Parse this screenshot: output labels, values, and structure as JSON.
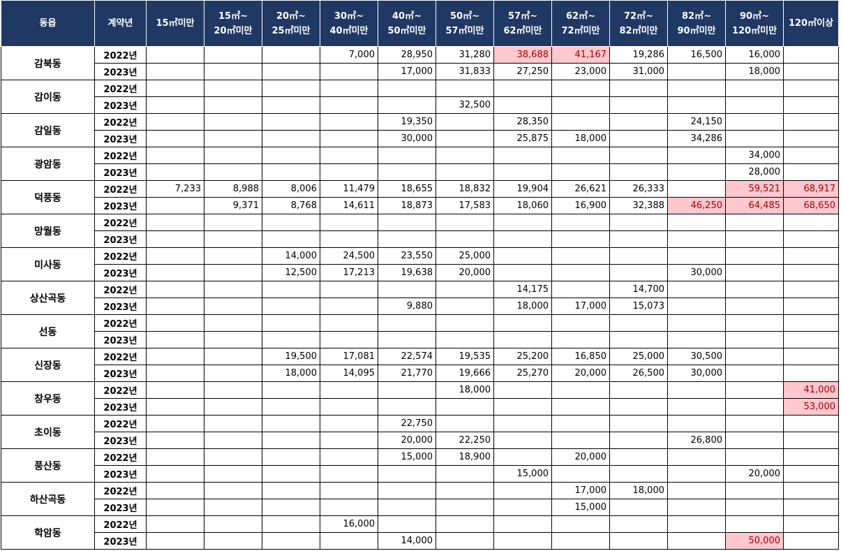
{
  "header": {
    "dong": "동읍",
    "year": "계약년",
    "bins": [
      [
        "15㎡미만",
        ""
      ],
      [
        "15㎡~",
        "20㎡미만"
      ],
      [
        "20㎡~",
        "25㎡미만"
      ],
      [
        "30㎡~",
        "40㎡미만"
      ],
      [
        "40㎡~",
        "50㎡미만"
      ],
      [
        "50㎡~",
        "57㎡미만"
      ],
      [
        "57㎡~",
        "62㎡미만"
      ],
      [
        "62㎡~",
        "72㎡미만"
      ],
      [
        "72㎡~",
        "82㎡미만"
      ],
      [
        "82㎡~",
        "90㎡미만"
      ],
      [
        "90㎡~",
        "120㎡미만"
      ],
      [
        "120㎡이상",
        ""
      ]
    ]
  },
  "highlight_color": "#ffc7ce",
  "highlight_text_color": "#9c0006",
  "groups": [
    {
      "dong": "감북동",
      "rows": [
        {
          "year": "2022년",
          "values": [
            "",
            "",
            "",
            "7,000",
            "28,950",
            "31,280",
            "38,688",
            "41,167",
            "19,286",
            "16,500",
            "16,000",
            ""
          ],
          "highlight": [
            6,
            7
          ]
        },
        {
          "year": "2023년",
          "values": [
            "",
            "",
            "",
            "",
            "17,000",
            "31,833",
            "27,250",
            "23,000",
            "31,000",
            "",
            "18,000",
            ""
          ],
          "highlight": []
        }
      ]
    },
    {
      "dong": "감이동",
      "rows": [
        {
          "year": "2022년",
          "values": [
            "",
            "",
            "",
            "",
            "",
            "",
            "",
            "",
            "",
            "",
            "",
            ""
          ],
          "highlight": []
        },
        {
          "year": "2023년",
          "values": [
            "",
            "",
            "",
            "",
            "",
            "32,500",
            "",
            "",
            "",
            "",
            "",
            ""
          ],
          "highlight": []
        }
      ]
    },
    {
      "dong": "감일동",
      "rows": [
        {
          "year": "2022년",
          "values": [
            "",
            "",
            "",
            "",
            "19,350",
            "",
            "28,350",
            "",
            "",
            "24,150",
            "",
            ""
          ],
          "highlight": []
        },
        {
          "year": "2023년",
          "values": [
            "",
            "",
            "",
            "",
            "30,000",
            "",
            "25,875",
            "18,000",
            "",
            "34,286",
            "",
            ""
          ],
          "highlight": []
        }
      ]
    },
    {
      "dong": "광암동",
      "rows": [
        {
          "year": "2022년",
          "values": [
            "",
            "",
            "",
            "",
            "",
            "",
            "",
            "",
            "",
            "",
            "34,000",
            ""
          ],
          "highlight": []
        },
        {
          "year": "2023년",
          "values": [
            "",
            "",
            "",
            "",
            "",
            "",
            "",
            "",
            "",
            "",
            "28,000",
            ""
          ],
          "highlight": []
        }
      ]
    },
    {
      "dong": "덕풍동",
      "rows": [
        {
          "year": "2022년",
          "values": [
            "7,233",
            "8,988",
            "8,006",
            "11,479",
            "18,655",
            "18,832",
            "19,904",
            "26,621",
            "26,333",
            "",
            "59,521",
            "68,917"
          ],
          "highlight": [
            10,
            11
          ]
        },
        {
          "year": "2023년",
          "values": [
            "",
            "9,371",
            "8,768",
            "14,611",
            "18,873",
            "17,583",
            "18,060",
            "16,900",
            "32,388",
            "46,250",
            "64,485",
            "68,650"
          ],
          "highlight": [
            9,
            10,
            11
          ]
        }
      ]
    },
    {
      "dong": "망월동",
      "rows": [
        {
          "year": "2022년",
          "values": [
            "",
            "",
            "",
            "",
            "",
            "",
            "",
            "",
            "",
            "",
            "",
            ""
          ],
          "highlight": []
        },
        {
          "year": "2023년",
          "values": [
            "",
            "",
            "",
            "",
            "",
            "",
            "",
            "",
            "",
            "",
            "",
            ""
          ],
          "highlight": []
        }
      ]
    },
    {
      "dong": "미사동",
      "rows": [
        {
          "year": "2022년",
          "values": [
            "",
            "",
            "14,000",
            "24,500",
            "23,550",
            "25,000",
            "",
            "",
            "",
            "",
            "",
            ""
          ],
          "highlight": []
        },
        {
          "year": "2023년",
          "values": [
            "",
            "",
            "12,500",
            "17,213",
            "19,638",
            "20,000",
            "",
            "",
            "",
            "30,000",
            "",
            ""
          ],
          "highlight": []
        }
      ]
    },
    {
      "dong": "상산곡동",
      "rows": [
        {
          "year": "2022년",
          "values": [
            "",
            "",
            "",
            "",
            "",
            "",
            "14,175",
            "",
            "14,700",
            "",
            "",
            ""
          ],
          "highlight": []
        },
        {
          "year": "2023년",
          "values": [
            "",
            "",
            "",
            "",
            "9,880",
            "",
            "18,000",
            "17,000",
            "15,073",
            "",
            "",
            ""
          ],
          "highlight": []
        }
      ]
    },
    {
      "dong": "선동",
      "rows": [
        {
          "year": "2022년",
          "values": [
            "",
            "",
            "",
            "",
            "",
            "",
            "",
            "",
            "",
            "",
            "",
            ""
          ],
          "highlight": []
        },
        {
          "year": "2023년",
          "values": [
            "",
            "",
            "",
            "",
            "",
            "",
            "",
            "",
            "",
            "",
            "",
            ""
          ],
          "highlight": []
        }
      ]
    },
    {
      "dong": "신장동",
      "rows": [
        {
          "year": "2022년",
          "values": [
            "",
            "",
            "19,500",
            "17,081",
            "22,574",
            "19,535",
            "25,200",
            "16,850",
            "25,000",
            "30,500",
            "",
            ""
          ],
          "highlight": []
        },
        {
          "year": "2023년",
          "values": [
            "",
            "",
            "18,000",
            "14,095",
            "21,770",
            "19,666",
            "25,270",
            "20,000",
            "26,500",
            "30,000",
            "",
            ""
          ],
          "highlight": []
        }
      ]
    },
    {
      "dong": "창우동",
      "rows": [
        {
          "year": "2022년",
          "values": [
            "",
            "",
            "",
            "",
            "",
            "18,000",
            "",
            "",
            "",
            "",
            "",
            "41,000"
          ],
          "highlight": [
            11
          ]
        },
        {
          "year": "2023년",
          "values": [
            "",
            "",
            "",
            "",
            "",
            "",
            "",
            "",
            "",
            "",
            "",
            "53,000"
          ],
          "highlight": [
            11
          ]
        }
      ]
    },
    {
      "dong": "초이동",
      "rows": [
        {
          "year": "2022년",
          "values": [
            "",
            "",
            "",
            "",
            "22,750",
            "",
            "",
            "",
            "",
            "",
            "",
            ""
          ],
          "highlight": []
        },
        {
          "year": "2023년",
          "values": [
            "",
            "",
            "",
            "",
            "20,000",
            "22,250",
            "",
            "",
            "",
            "26,800",
            "",
            ""
          ],
          "highlight": []
        }
      ]
    },
    {
      "dong": "풍산동",
      "rows": [
        {
          "year": "2022년",
          "values": [
            "",
            "",
            "",
            "",
            "15,000",
            "18,900",
            "",
            "20,000",
            "",
            "",
            "",
            ""
          ],
          "highlight": []
        },
        {
          "year": "2023년",
          "values": [
            "",
            "",
            "",
            "",
            "",
            "",
            "15,000",
            "",
            "",
            "",
            "20,000",
            ""
          ],
          "highlight": []
        }
      ]
    },
    {
      "dong": "하산곡동",
      "rows": [
        {
          "year": "2022년",
          "values": [
            "",
            "",
            "",
            "",
            "",
            "",
            "",
            "17,000",
            "18,000",
            "",
            "",
            ""
          ],
          "highlight": []
        },
        {
          "year": "2023년",
          "values": [
            "",
            "",
            "",
            "",
            "",
            "",
            "",
            "15,000",
            "",
            "",
            "",
            ""
          ],
          "highlight": []
        }
      ]
    },
    {
      "dong": "학암동",
      "rows": [
        {
          "year": "2022년",
          "values": [
            "",
            "",
            "",
            "16,000",
            "",
            "",
            "",
            "",
            "",
            "",
            "",
            ""
          ],
          "highlight": []
        },
        {
          "year": "2023년",
          "values": [
            "",
            "",
            "",
            "",
            "14,000",
            "",
            "",
            "",
            "",
            "",
            "50,000",
            ""
          ],
          "highlight": [
            10
          ]
        }
      ]
    }
  ]
}
